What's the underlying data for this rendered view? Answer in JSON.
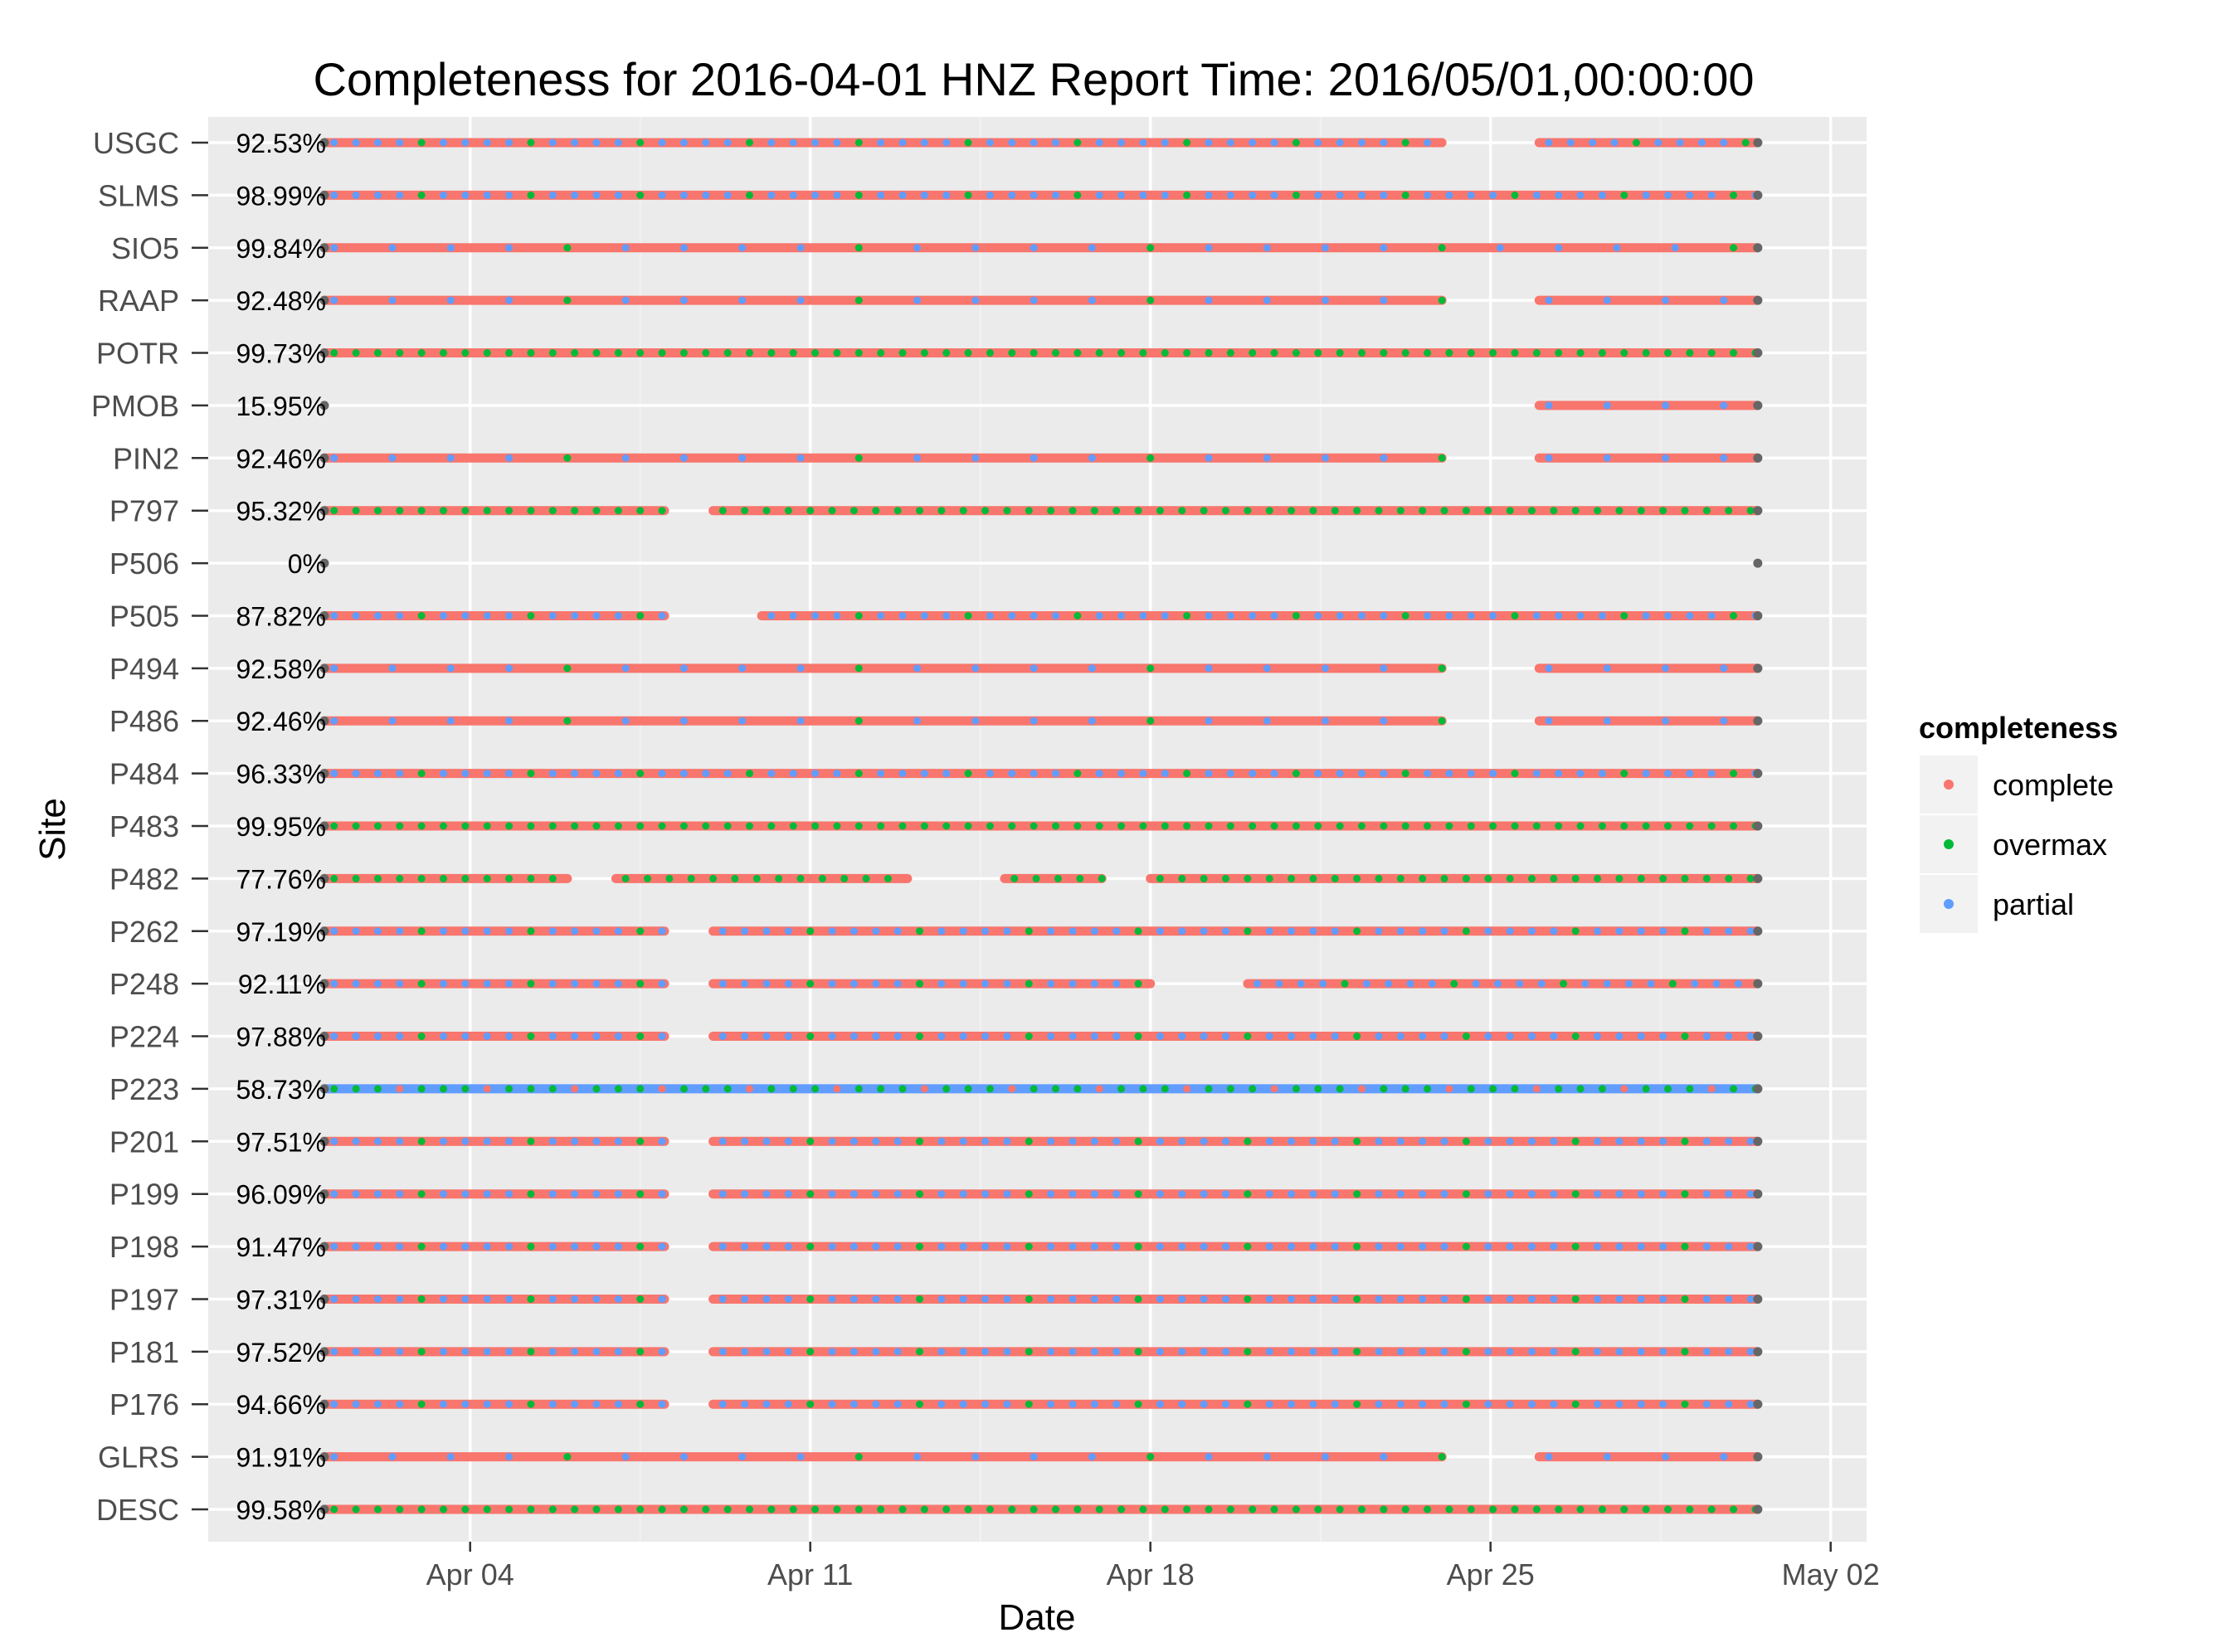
{
  "chart_data": {
    "type": "scatter",
    "title": "Completeness for  2016-04-01 HNZ  Report Time:  2016/05/01,00:00:00",
    "xlabel": "Date",
    "ylabel": "Site",
    "x_ticks": [
      "Apr 04",
      "Apr 11",
      "Apr 18",
      "Apr 25",
      "May 02"
    ],
    "x_range": [
      "2016-04-01",
      "2016-05-02"
    ],
    "legend": {
      "title": "completeness",
      "placement": "right",
      "entries": [
        {
          "label": "complete",
          "color": "#F8766D"
        },
        {
          "label": "overmax",
          "color": "#00BA38"
        },
        {
          "label": "partial",
          "color": "#619CFF"
        }
      ]
    },
    "endpoint_color": "#666666",
    "sites": [
      {
        "site": "USGC",
        "completeness": "92.53%",
        "coverage": [
          [
            "2016-04-01",
            "2016-04-24"
          ],
          [
            "2016-04-26",
            "2016-04-30"
          ]
        ],
        "secondary": "partial"
      },
      {
        "site": "SLMS",
        "completeness": "98.99%",
        "coverage": [
          [
            "2016-04-01",
            "2016-04-30"
          ]
        ],
        "secondary": "partial"
      },
      {
        "site": "SIO5",
        "completeness": "99.84%",
        "coverage": [
          [
            "2016-04-01",
            "2016-04-30"
          ]
        ],
        "secondary": "sparse"
      },
      {
        "site": "RAAP",
        "completeness": "92.48%",
        "coverage": [
          [
            "2016-04-01",
            "2016-04-24"
          ],
          [
            "2016-04-26",
            "2016-04-30"
          ]
        ],
        "secondary": "sparse"
      },
      {
        "site": "POTR",
        "completeness": "99.73%",
        "coverage": [
          [
            "2016-04-01",
            "2016-04-30"
          ]
        ],
        "secondary": "overmax"
      },
      {
        "site": "PMOB",
        "completeness": "15.95%",
        "coverage": [
          [
            "2016-04-26",
            "2016-04-30"
          ]
        ],
        "secondary": "sparse"
      },
      {
        "site": "PIN2",
        "completeness": "92.46%",
        "coverage": [
          [
            "2016-04-01",
            "2016-04-24"
          ],
          [
            "2016-04-26",
            "2016-04-30"
          ]
        ],
        "secondary": "sparse"
      },
      {
        "site": "P797",
        "completeness": "95.32%",
        "coverage": [
          [
            "2016-04-01",
            "2016-04-08"
          ],
          [
            "2016-04-09",
            "2016-04-30"
          ]
        ],
        "secondary": "overmax"
      },
      {
        "site": "P506",
        "completeness": "0%",
        "coverage": [],
        "secondary": "sparse"
      },
      {
        "site": "P505",
        "completeness": "87.82%",
        "coverage": [
          [
            "2016-04-01",
            "2016-04-08"
          ],
          [
            "2016-04-10",
            "2016-04-30"
          ]
        ],
        "secondary": "partial"
      },
      {
        "site": "P494",
        "completeness": "92.58%",
        "coverage": [
          [
            "2016-04-01",
            "2016-04-24"
          ],
          [
            "2016-04-26",
            "2016-04-30"
          ]
        ],
        "secondary": "sparse"
      },
      {
        "site": "P486",
        "completeness": "92.46%",
        "coverage": [
          [
            "2016-04-01",
            "2016-04-24"
          ],
          [
            "2016-04-26",
            "2016-04-30"
          ]
        ],
        "secondary": "sparse"
      },
      {
        "site": "P484",
        "completeness": "96.33%",
        "coverage": [
          [
            "2016-04-01",
            "2016-04-30"
          ]
        ],
        "secondary": "partial"
      },
      {
        "site": "P483",
        "completeness": "99.95%",
        "coverage": [
          [
            "2016-04-01",
            "2016-04-30"
          ]
        ],
        "secondary": "overmax"
      },
      {
        "site": "P482",
        "completeness": "77.76%",
        "coverage": [
          [
            "2016-04-01",
            "2016-04-06"
          ],
          [
            "2016-04-07",
            "2016-04-13"
          ],
          [
            "2016-04-15",
            "2016-04-17"
          ],
          [
            "2016-04-18",
            "2016-04-30"
          ]
        ],
        "secondary": "overmax"
      },
      {
        "site": "P262",
        "completeness": "97.19%",
        "coverage": [
          [
            "2016-04-01",
            "2016-04-08"
          ],
          [
            "2016-04-09",
            "2016-04-30"
          ]
        ],
        "secondary": "partial"
      },
      {
        "site": "P248",
        "completeness": "92.11%",
        "coverage": [
          [
            "2016-04-01",
            "2016-04-08"
          ],
          [
            "2016-04-09",
            "2016-04-18"
          ],
          [
            "2016-04-20",
            "2016-04-30"
          ]
        ],
        "secondary": "partial"
      },
      {
        "site": "P224",
        "completeness": "97.88%",
        "coverage": [
          [
            "2016-04-01",
            "2016-04-08"
          ],
          [
            "2016-04-09",
            "2016-04-30"
          ]
        ],
        "secondary": "partial"
      },
      {
        "site": "P223",
        "completeness": "58.73%",
        "coverage": [
          [
            "2016-04-01",
            "2016-04-30"
          ]
        ],
        "secondary": "partial"
      },
      {
        "site": "P201",
        "completeness": "97.51%",
        "coverage": [
          [
            "2016-04-01",
            "2016-04-08"
          ],
          [
            "2016-04-09",
            "2016-04-30"
          ]
        ],
        "secondary": "partial"
      },
      {
        "site": "P199",
        "completeness": "96.09%",
        "coverage": [
          [
            "2016-04-01",
            "2016-04-08"
          ],
          [
            "2016-04-09",
            "2016-04-30"
          ]
        ],
        "secondary": "partial"
      },
      {
        "site": "P198",
        "completeness": "91.47%",
        "coverage": [
          [
            "2016-04-01",
            "2016-04-08"
          ],
          [
            "2016-04-09",
            "2016-04-30"
          ]
        ],
        "secondary": "partial"
      },
      {
        "site": "P197",
        "completeness": "97.31%",
        "coverage": [
          [
            "2016-04-01",
            "2016-04-08"
          ],
          [
            "2016-04-09",
            "2016-04-30"
          ]
        ],
        "secondary": "partial"
      },
      {
        "site": "P181",
        "completeness": "97.52%",
        "coverage": [
          [
            "2016-04-01",
            "2016-04-08"
          ],
          [
            "2016-04-09",
            "2016-04-30"
          ]
        ],
        "secondary": "partial"
      },
      {
        "site": "P176",
        "completeness": "94.66%",
        "coverage": [
          [
            "2016-04-01",
            "2016-04-08"
          ],
          [
            "2016-04-09",
            "2016-04-30"
          ]
        ],
        "secondary": "partial"
      },
      {
        "site": "GLRS",
        "completeness": "91.91%",
        "coverage": [
          [
            "2016-04-01",
            "2016-04-24"
          ],
          [
            "2016-04-26",
            "2016-04-30"
          ]
        ],
        "secondary": "sparse"
      },
      {
        "site": "DESC",
        "completeness": "99.58%",
        "coverage": [
          [
            "2016-04-01",
            "2016-04-30"
          ]
        ],
        "secondary": "overmax"
      }
    ]
  }
}
